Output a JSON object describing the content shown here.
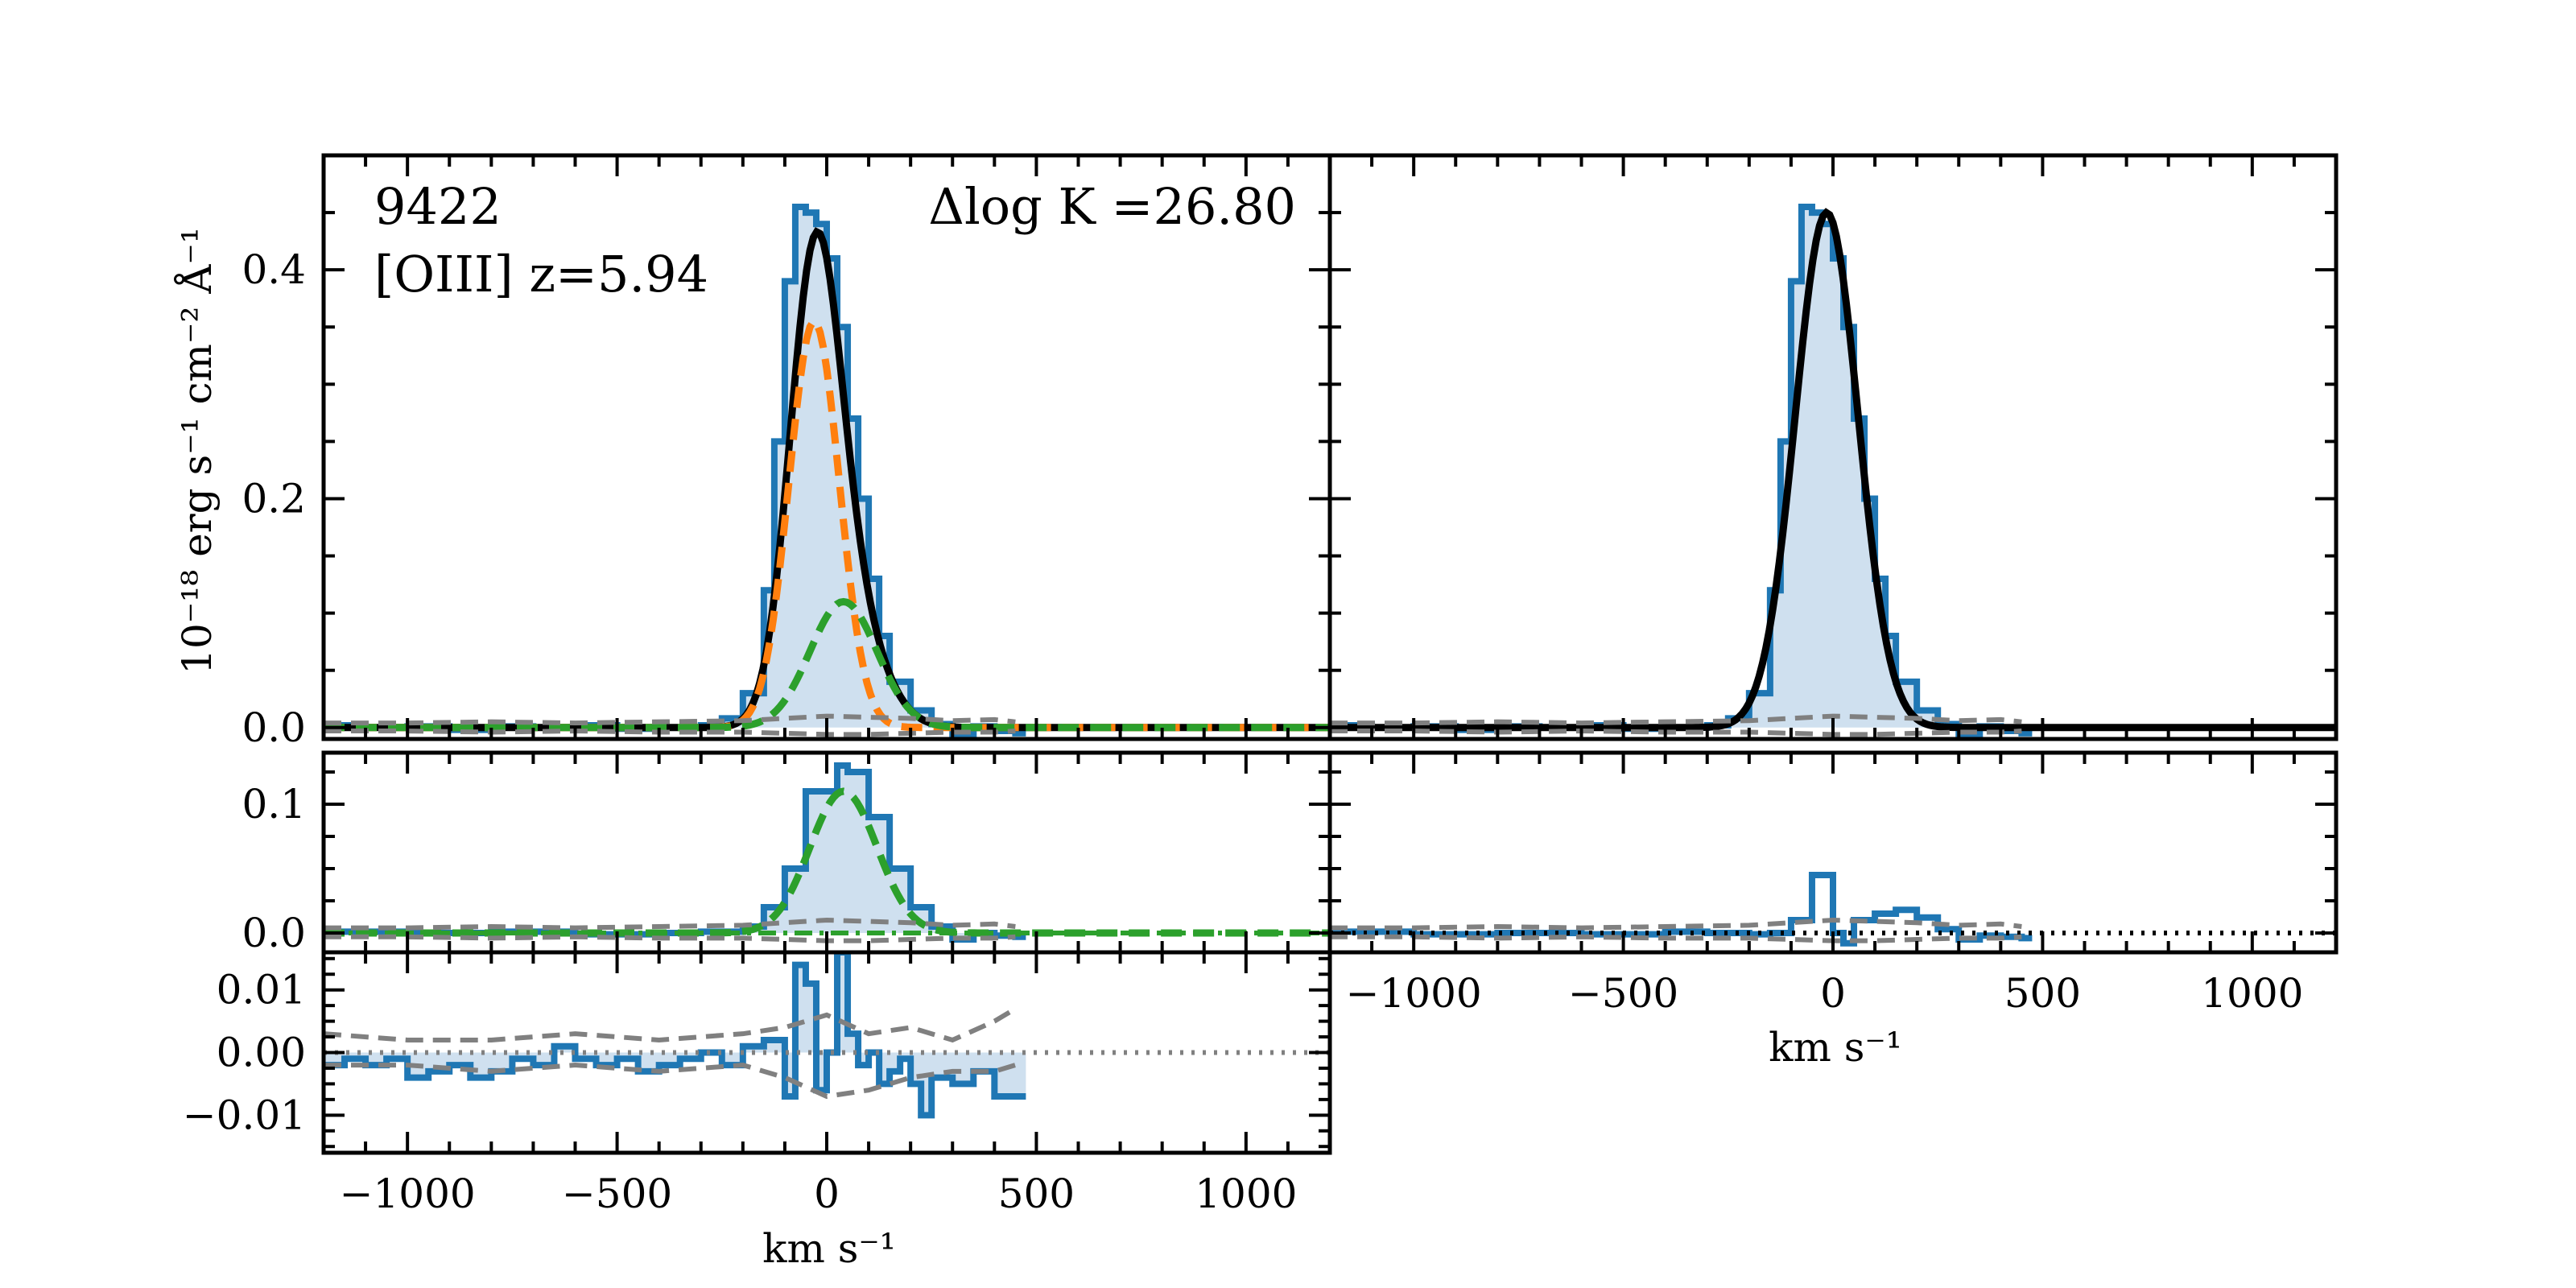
{
  "chart_data": {
    "type": "line",
    "figure_label": "9422",
    "line_label": "[OIII] z=5.94",
    "annotation": "Δlog K =26.80",
    "ylabel": "10⁻¹⁸ erg s⁻¹ cm⁻² Å⁻¹",
    "xlabel": "km s⁻¹",
    "xlim": [
      -1200,
      1200
    ],
    "xticks": [
      -1000,
      -500,
      0,
      500,
      1000
    ],
    "xtick_labels": [
      "−1000",
      "−500",
      "0",
      "500",
      "1000"
    ],
    "panels": [
      {
        "id": "top_left",
        "ylim": [
          -0.01,
          0.5
        ],
        "yticks": [
          0.0,
          0.2,
          0.4
        ],
        "ytick_labels": [
          "0.0",
          "0.2",
          "0.4"
        ],
        "series": [
          {
            "name": "observed spectrum",
            "style": "step-filled",
            "color": "#1f77b4",
            "x": [
              -1200,
              -1100,
              -1000,
              -900,
              -800,
              -700,
              -600,
              -500,
              -400,
              -300,
              -250,
              -200,
              -150,
              -125,
              -100,
              -75,
              -50,
              -25,
              0,
              25,
              50,
              75,
              100,
              125,
              150,
              200,
              250,
              300,
              350,
              400,
              450
            ],
            "y": [
              0.002,
              0.0,
              0.001,
              -0.002,
              0.001,
              0.0,
              0.002,
              -0.001,
              0.0,
              0.002,
              0.008,
              0.03,
              0.12,
              0.25,
              0.39,
              0.455,
              0.45,
              0.44,
              0.41,
              0.35,
              0.27,
              0.2,
              0.13,
              0.08,
              0.04,
              0.015,
              0.003,
              -0.008,
              0.001,
              -0.003,
              -0.005
            ]
          },
          {
            "name": "total model",
            "style": "solid",
            "color": "#000000",
            "components": [
              {
                "amp": 0.355,
                "mu": -30,
                "sigma": 60
              },
              {
                "amp": 0.11,
                "mu": 40,
                "sigma": 80
              }
            ]
          },
          {
            "name": "narrow component",
            "style": "dashed",
            "color": "#ff7f0e",
            "amp": 0.355,
            "mu": -30,
            "sigma": 60
          },
          {
            "name": "broad component",
            "style": "dashed",
            "color": "#2ca02c",
            "amp": 0.11,
            "mu": 40,
            "sigma": 80
          },
          {
            "name": "error upper",
            "style": "dashed",
            "color": "#808080",
            "x": [
              -1200,
              -1000,
              -800,
              -600,
              -400,
              -200,
              -100,
              0,
              100,
              200,
              300,
              400,
              450
            ],
            "y": [
              0.004,
              0.004,
              0.005,
              0.004,
              0.005,
              0.006,
              0.008,
              0.01,
              0.009,
              0.008,
              0.006,
              0.007,
              0.005
            ]
          },
          {
            "name": "error lower",
            "style": "dashed",
            "color": "#808080",
            "x": [
              -1200,
              -1000,
              -800,
              -600,
              -400,
              -200,
              -100,
              0,
              100,
              200,
              300,
              400,
              450
            ],
            "y": [
              -0.003,
              -0.003,
              -0.004,
              -0.003,
              -0.004,
              -0.004,
              -0.005,
              -0.006,
              -0.006,
              -0.005,
              -0.004,
              -0.004,
              -0.003
            ]
          }
        ]
      },
      {
        "id": "top_right",
        "ylim": [
          -0.01,
          0.5
        ],
        "yticks": [
          0.0,
          0.2,
          0.4
        ],
        "series": [
          {
            "name": "observed spectrum",
            "style": "step-filled",
            "color": "#1f77b4",
            "x": [
              -1200,
              -1100,
              -1000,
              -900,
              -800,
              -700,
              -600,
              -500,
              -400,
              -300,
              -250,
              -200,
              -150,
              -125,
              -100,
              -75,
              -50,
              -25,
              0,
              25,
              50,
              75,
              100,
              125,
              150,
              200,
              250,
              300,
              350,
              400,
              450
            ],
            "y": [
              0.002,
              0.0,
              0.001,
              -0.002,
              0.001,
              0.0,
              0.002,
              -0.001,
              0.0,
              0.002,
              0.008,
              0.03,
              0.12,
              0.25,
              0.39,
              0.455,
              0.45,
              0.44,
              0.41,
              0.35,
              0.27,
              0.2,
              0.13,
              0.08,
              0.04,
              0.015,
              0.003,
              -0.008,
              0.001,
              -0.003,
              -0.005
            ]
          },
          {
            "name": "single gaussian model",
            "style": "solid",
            "color": "#000000",
            "amp": 0.45,
            "mu": -15,
            "sigma": 75
          },
          {
            "name": "error upper",
            "style": "dashed",
            "color": "#808080",
            "x": [
              -1200,
              -1000,
              -800,
              -600,
              -400,
              -200,
              -100,
              0,
              100,
              200,
              300,
              400,
              450
            ],
            "y": [
              0.004,
              0.004,
              0.005,
              0.004,
              0.005,
              0.006,
              0.008,
              0.01,
              0.009,
              0.008,
              0.006,
              0.007,
              0.005
            ]
          },
          {
            "name": "error lower",
            "style": "dashed",
            "color": "#808080",
            "x": [
              -1200,
              -1000,
              -800,
              -600,
              -400,
              -200,
              -100,
              0,
              100,
              200,
              300,
              400,
              450
            ],
            "y": [
              -0.003,
              -0.003,
              -0.004,
              -0.003,
              -0.004,
              -0.004,
              -0.005,
              -0.006,
              -0.006,
              -0.005,
              -0.004,
              -0.004,
              -0.003
            ]
          }
        ]
      },
      {
        "id": "middle_left",
        "ylim": [
          -0.015,
          0.14
        ],
        "yticks": [
          0.0,
          0.1
        ],
        "ytick_labels": [
          "0.0",
          "0.1"
        ],
        "series": [
          {
            "name": "broad residual",
            "style": "step-filled",
            "color": "#1f77b4",
            "x": [
              -1200,
              -1000,
              -800,
              -600,
              -400,
              -300,
              -200,
              -150,
              -100,
              -50,
              0,
              25,
              50,
              100,
              150,
              200,
              250,
              300,
              350,
              400,
              450
            ],
            "y": [
              0.001,
              0.0,
              0.001,
              -0.001,
              0.0,
              0.001,
              0.005,
              0.02,
              0.05,
              0.11,
              0.11,
              0.13,
              0.125,
              0.09,
              0.05,
              0.02,
              0.005,
              -0.005,
              0.0,
              -0.002,
              -0.003
            ]
          },
          {
            "name": "broad component",
            "style": "dashed",
            "color": "#2ca02c",
            "amp": 0.11,
            "mu": 40,
            "sigma": 80
          },
          {
            "name": "zero line",
            "style": "dashdot",
            "color": "#2ca02c",
            "y": 0.0
          },
          {
            "name": "error upper",
            "style": "dashed",
            "color": "#808080",
            "x": [
              -1200,
              -1000,
              -800,
              -600,
              -400,
              -200,
              -100,
              0,
              100,
              200,
              300,
              400,
              450
            ],
            "y": [
              0.004,
              0.004,
              0.005,
              0.004,
              0.005,
              0.006,
              0.008,
              0.01,
              0.009,
              0.008,
              0.006,
              0.007,
              0.005
            ]
          },
          {
            "name": "error lower",
            "style": "dashed",
            "color": "#808080",
            "x": [
              -1200,
              -1000,
              -800,
              -600,
              -400,
              -200,
              -100,
              0,
              100,
              200,
              300,
              400,
              450
            ],
            "y": [
              -0.003,
              -0.003,
              -0.004,
              -0.003,
              -0.004,
              -0.004,
              -0.005,
              -0.006,
              -0.006,
              -0.005,
              -0.004,
              -0.004,
              -0.003
            ]
          }
        ]
      },
      {
        "id": "middle_right",
        "ylim": [
          -0.015,
          0.14
        ],
        "yticks": [
          0.0,
          0.1
        ],
        "series": [
          {
            "name": "residual",
            "style": "step",
            "color": "#1f77b4",
            "x": [
              -1200,
              -1000,
              -800,
              -600,
              -400,
              -300,
              -200,
              -150,
              -100,
              -50,
              0,
              25,
              50,
              100,
              150,
              200,
              250,
              300,
              350,
              400,
              450
            ],
            "y": [
              0.001,
              -0.001,
              0.0,
              -0.001,
              0.001,
              0.0,
              -0.001,
              0.0,
              0.01,
              0.045,
              0.0,
              -0.008,
              0.01,
              0.015,
              0.018,
              0.012,
              0.003,
              -0.005,
              -0.002,
              -0.003,
              -0.004
            ]
          },
          {
            "name": "zero line",
            "style": "dotted",
            "color": "#000000",
            "y": 0.0
          },
          {
            "name": "error upper",
            "style": "dashed",
            "color": "#808080",
            "x": [
              -1200,
              -1000,
              -800,
              -600,
              -400,
              -200,
              -100,
              0,
              100,
              200,
              300,
              400,
              450
            ],
            "y": [
              0.004,
              0.004,
              0.005,
              0.004,
              0.005,
              0.006,
              0.008,
              0.01,
              0.009,
              0.008,
              0.006,
              0.007,
              0.005
            ]
          },
          {
            "name": "error lower",
            "style": "dashed",
            "color": "#808080",
            "x": [
              -1200,
              -1000,
              -800,
              -600,
              -400,
              -200,
              -100,
              0,
              100,
              200,
              300,
              400,
              450
            ],
            "y": [
              -0.003,
              -0.003,
              -0.004,
              -0.003,
              -0.004,
              -0.004,
              -0.005,
              -0.006,
              -0.006,
              -0.005,
              -0.004,
              -0.004,
              -0.003
            ]
          }
        ]
      },
      {
        "id": "bottom_left",
        "ylim": [
          -0.016,
          0.016
        ],
        "yticks": [
          -0.01,
          0.0,
          0.01
        ],
        "ytick_labels": [
          "−0.01",
          "0.00",
          "0.01"
        ],
        "series": [
          {
            "name": "residual",
            "style": "step-filled",
            "color": "#1f77b4",
            "x": [
              -1200,
              -1150,
              -1100,
              -1050,
              -1000,
              -950,
              -900,
              -850,
              -800,
              -750,
              -700,
              -650,
              -600,
              -550,
              -500,
              -450,
              -400,
              -350,
              -300,
              -250,
              -200,
              -150,
              -100,
              -75,
              -50,
              -25,
              0,
              25,
              50,
              75,
              100,
              125,
              150,
              175,
              200,
              225,
              250,
              300,
              350,
              400,
              450
            ],
            "y": [
              -0.002,
              -0.001,
              -0.002,
              -0.001,
              -0.004,
              -0.003,
              -0.002,
              -0.004,
              -0.003,
              -0.001,
              -0.002,
              0.001,
              -0.001,
              -0.002,
              -0.001,
              -0.003,
              -0.002,
              -0.001,
              0.0,
              -0.002,
              0.001,
              0.002,
              -0.007,
              0.014,
              0.011,
              -0.006,
              0.0,
              0.016,
              0.003,
              -0.002,
              0.0,
              -0.005,
              -0.003,
              -0.001,
              -0.005,
              -0.01,
              -0.004,
              -0.005,
              -0.003,
              -0.007,
              -0.007
            ]
          },
          {
            "name": "zero line",
            "style": "dotted",
            "color": "#808080",
            "y": 0.0
          },
          {
            "name": "error upper",
            "style": "dashed",
            "color": "#808080",
            "x": [
              -1200,
              -1000,
              -800,
              -600,
              -400,
              -200,
              -100,
              0,
              100,
              200,
              300,
              400,
              450
            ],
            "y": [
              0.003,
              0.002,
              0.002,
              0.003,
              0.002,
              0.003,
              0.004,
              0.006,
              0.003,
              0.004,
              0.002,
              0.005,
              0.007
            ]
          },
          {
            "name": "error lower",
            "style": "dashed",
            "color": "#808080",
            "x": [
              -1200,
              -1000,
              -800,
              -600,
              -400,
              -200,
              -100,
              0,
              100,
              200,
              300,
              400,
              450
            ],
            "y": [
              -0.002,
              -0.002,
              -0.003,
              -0.002,
              -0.003,
              -0.002,
              -0.004,
              -0.007,
              -0.006,
              -0.004,
              -0.003,
              -0.003,
              -0.002
            ]
          }
        ]
      }
    ]
  }
}
